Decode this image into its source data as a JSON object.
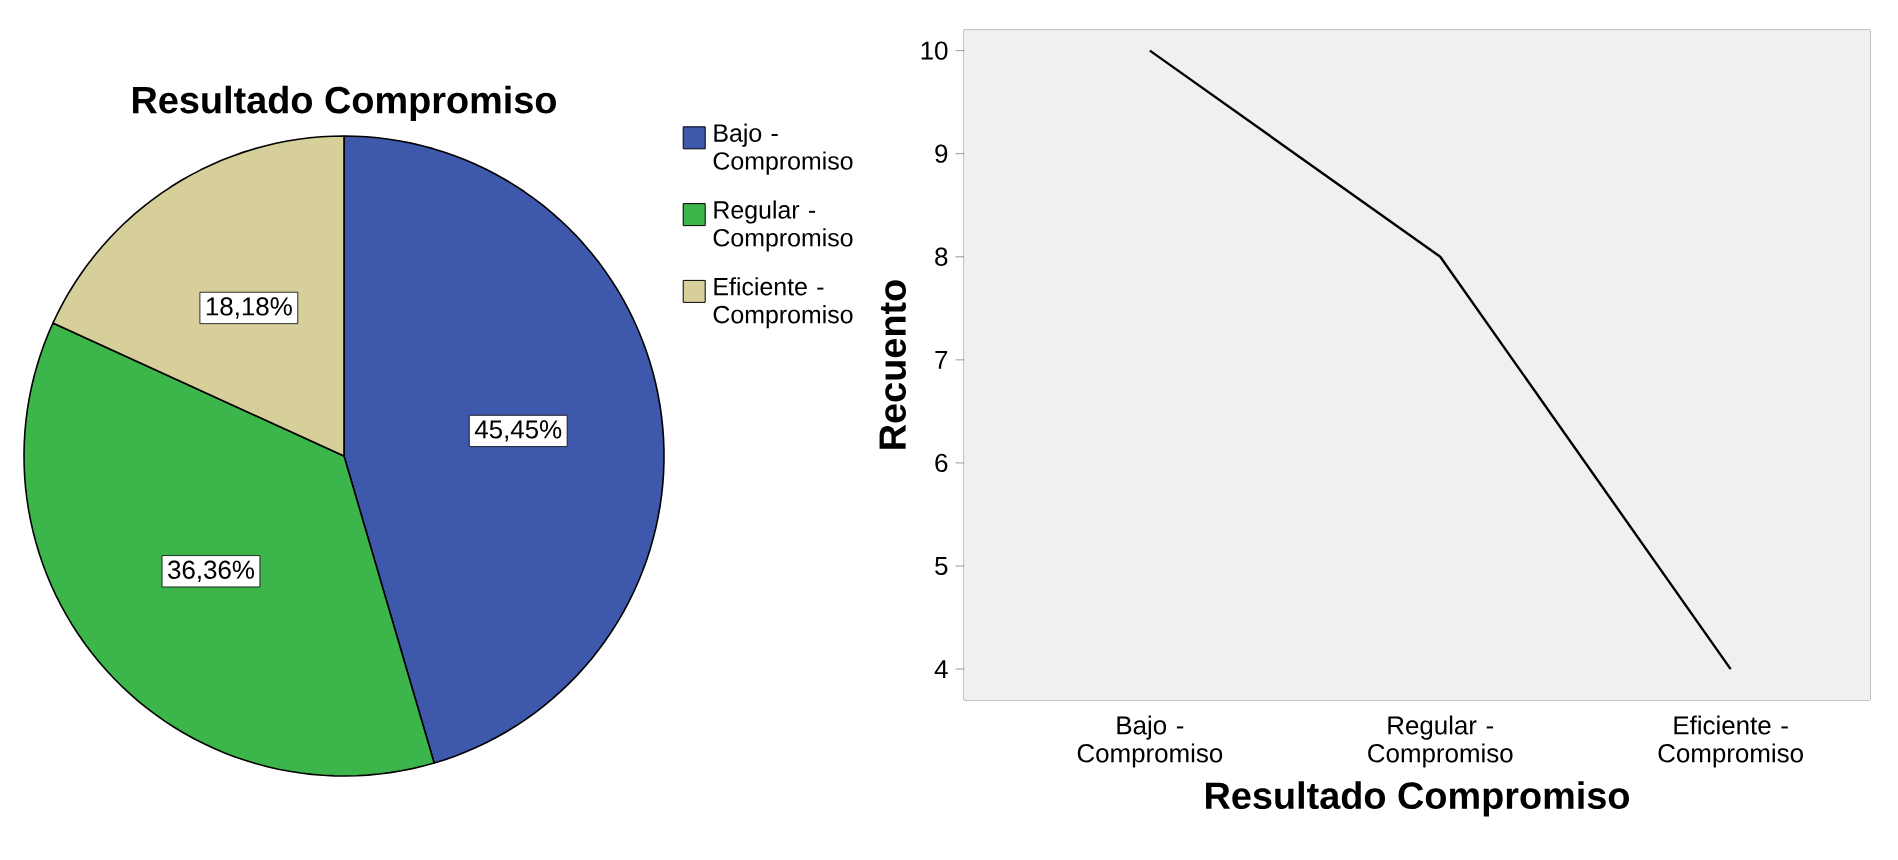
{
  "chart_data": [
    {
      "type": "pie",
      "title": "Resultado Compromiso",
      "categories": [
        "Bajo - Compromiso",
        "Regular - Compromiso",
        "Eficiente - Compromiso"
      ],
      "values": [
        45.45,
        36.36,
        18.18
      ],
      "colors": [
        "#3e58ac",
        "#3cb54a",
        "#d6cf9a"
      ],
      "value_labels": [
        "45,45%",
        "36,36%",
        "18,18%"
      ],
      "legend": "right"
    },
    {
      "type": "line",
      "xlabel": "Resultado Compromiso",
      "ylabel": "Recuento",
      "categories": [
        "Bajo - Compromiso",
        "Regular - Compromiso",
        "Eficiente - Compromiso"
      ],
      "values": [
        10,
        8,
        4
      ],
      "color": "#000000",
      "ylim": [
        3.7,
        10.2
      ],
      "yticks": [
        4,
        5,
        6,
        7,
        8,
        9,
        10
      ]
    }
  ]
}
